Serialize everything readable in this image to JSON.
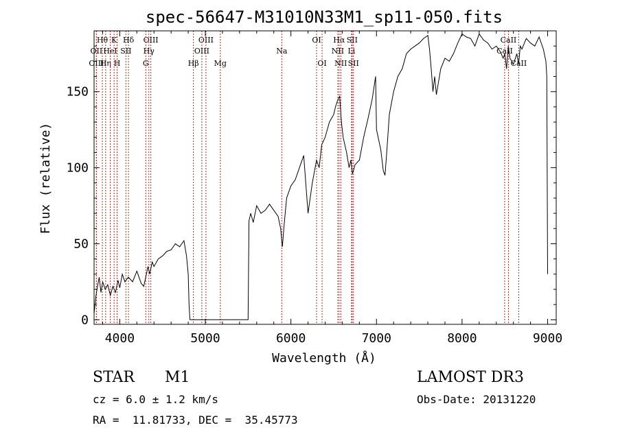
{
  "chart_data": {
    "type": "line",
    "title": "spec-56647-M31010N33M1_sp11-050.fits",
    "xlabel": "Wavelength (Å)",
    "ylabel": "Flux (relative)",
    "xlim": [
      3700,
      9100
    ],
    "ylim": [
      -3,
      190
    ],
    "x_ticks": [
      4000,
      5000,
      6000,
      7000,
      8000,
      9000
    ],
    "x_tick_labels": [
      "4000",
      "5000",
      "6000",
      "7000",
      "8000",
      "9000"
    ],
    "y_ticks": [
      0,
      50,
      100,
      150
    ],
    "y_tick_labels": [
      "0",
      "50",
      "100",
      "150"
    ],
    "series": [
      {
        "name": "flux",
        "x": [
          3700,
          3720,
          3740,
          3760,
          3780,
          3800,
          3830,
          3860,
          3890,
          3920,
          3950,
          3980,
          4000,
          4030,
          4060,
          4100,
          4150,
          4200,
          4250,
          4280,
          4300,
          4330,
          4350,
          4380,
          4400,
          4450,
          4500,
          4550,
          4600,
          4650,
          4700,
          4750,
          4780,
          4800,
          4810,
          4820,
          5450,
          5480,
          5500,
          5510,
          5530,
          5560,
          5600,
          5650,
          5700,
          5750,
          5800,
          5850,
          5880,
          5900,
          5920,
          5950,
          6000,
          6050,
          6100,
          6150,
          6200,
          6250,
          6300,
          6330,
          6360,
          6400,
          6450,
          6500,
          6520,
          6550,
          6570,
          6590,
          6610,
          6630,
          6650,
          6680,
          6700,
          6720,
          6750,
          6800,
          6850,
          6900,
          6950,
          6990,
          7000,
          7050,
          7080,
          7100,
          7120,
          7150,
          7200,
          7250,
          7300,
          7350,
          7400,
          7450,
          7500,
          7550,
          7600,
          7620,
          7640,
          7660,
          7680,
          7700,
          7750,
          7800,
          7850,
          7900,
          7950,
          8000,
          8050,
          8100,
          8150,
          8200,
          8250,
          8300,
          8350,
          8400,
          8450,
          8480,
          8500,
          8520,
          8540,
          8560,
          8600,
          8640,
          8660,
          8680,
          8700,
          8750,
          8800,
          8850,
          8900,
          8950,
          8980,
          8990,
          9000
        ],
        "values": [
          4,
          15,
          22,
          28,
          18,
          25,
          20,
          23,
          16,
          22,
          18,
          26,
          21,
          30,
          25,
          28,
          25,
          32,
          24,
          22,
          27,
          35,
          30,
          38,
          35,
          40,
          42,
          45,
          46,
          50,
          48,
          52,
          42,
          30,
          10,
          0,
          0,
          0,
          0,
          65,
          70,
          64,
          75,
          70,
          72,
          76,
          72,
          68,
          60,
          48,
          62,
          80,
          88,
          92,
          100,
          108,
          70,
          90,
          105,
          100,
          115,
          120,
          130,
          135,
          140,
          145,
          147,
          130,
          120,
          115,
          110,
          100,
          105,
          96,
          102,
          105,
          120,
          132,
          145,
          160,
          125,
          112,
          98,
          95,
          110,
          135,
          150,
          160,
          165,
          175,
          178,
          180,
          182,
          185,
          187,
          178,
          165,
          150,
          160,
          148,
          165,
          172,
          170,
          175,
          182,
          188,
          186,
          185,
          180,
          188,
          184,
          182,
          178,
          180,
          176,
          172,
          175,
          165,
          180,
          172,
          168,
          175,
          168,
          180,
          178,
          185,
          182,
          180,
          186,
          178,
          170,
          160,
          30
        ]
      }
    ],
    "lines": [
      {
        "label": "Hθ",
        "x": 3797,
        "row": 1
      },
      {
        "label": "OII",
        "x": 3727,
        "row": 2
      },
      {
        "label": "OIII",
        "x": 3727,
        "row": 3
      },
      {
        "label": "Hη",
        "x": 3835,
        "row": 3
      },
      {
        "label": "K",
        "x": 3934,
        "row": 1
      },
      {
        "label": "H",
        "x": 3969,
        "row": 3
      },
      {
        "label": "HeI",
        "x": 3889,
        "row": 2
      },
      {
        "label": "SII",
        "x": 4072,
        "row": 2
      },
      {
        "label": "Hδ",
        "x": 4102,
        "row": 1
      },
      {
        "label": "OIII",
        "x": 4363,
        "row": 1
      },
      {
        "label": "Hγ",
        "x": 4340,
        "row": 2
      },
      {
        "label": "G",
        "x": 4304,
        "row": 3
      },
      {
        "label": "Hβ",
        "x": 4861,
        "row": 3
      },
      {
        "label": "OIII",
        "x": 5007,
        "row": 1
      },
      {
        "label": "OIII",
        "x": 4959,
        "row": 2
      },
      {
        "label": "Mg",
        "x": 5175,
        "row": 3
      },
      {
        "label": "Na",
        "x": 5893,
        "row": 2
      },
      {
        "label": "OI",
        "x": 6300,
        "row": 1
      },
      {
        "label": "OI",
        "x": 6364,
        "row": 3
      },
      {
        "label": "Hα",
        "x": 6563,
        "row": 1
      },
      {
        "label": "NII",
        "x": 6548,
        "row": 2
      },
      {
        "label": "NII",
        "x": 6583,
        "row": 3
      },
      {
        "label": "SII",
        "x": 6716,
        "row": 1
      },
      {
        "label": "Li",
        "x": 6708,
        "row": 2
      },
      {
        "label": "SII",
        "x": 6731,
        "row": 3
      },
      {
        "label": "CaII",
        "x": 8542,
        "row": 1
      },
      {
        "label": "CaII",
        "x": 8498,
        "row": 2
      },
      {
        "label": "CaII",
        "x": 8662,
        "row": 3
      }
    ]
  },
  "info": {
    "object_class": "STAR",
    "subclass": "M1",
    "survey": "LAMOST DR3",
    "cz": "cz = 6.0 ± 1.2 km/s",
    "obs_date": "Obs-Date: 20131220",
    "coords": "RA =  11.81733, DEC =  35.45773"
  }
}
